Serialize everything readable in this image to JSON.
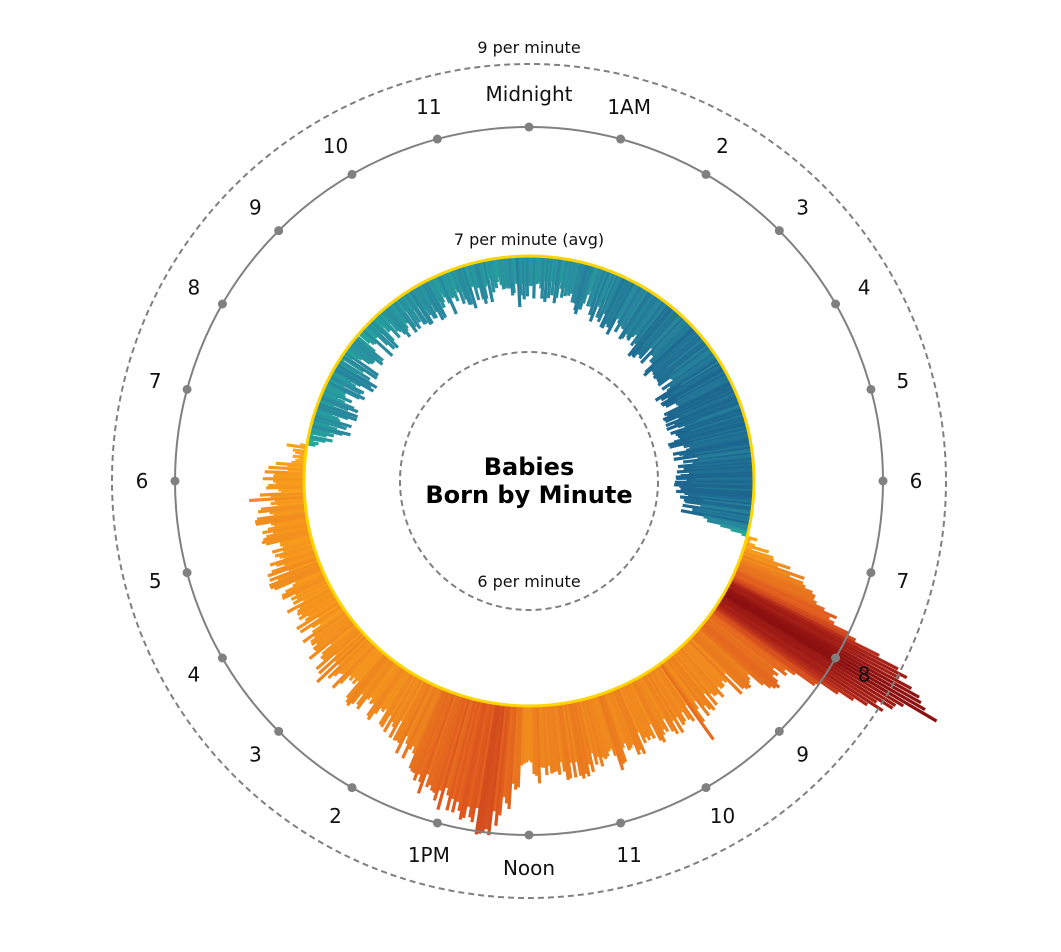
{
  "chart_data": {
    "type": "radial-bar",
    "title": "Babies\nBorn by Minute",
    "title_lines": [
      "Babies",
      "Born by Minute"
    ],
    "minutes_per_day": 1440,
    "baseline_per_minute": 7,
    "reference_rings": [
      {
        "value": 9,
        "label": "9 per minute"
      },
      {
        "value": 7,
        "label": "7 per minute (avg)"
      },
      {
        "value": 6,
        "label": "6 per minute"
      }
    ],
    "hour_labels": [
      "Midnight",
      "1AM",
      "2",
      "3",
      "4",
      "5",
      "6",
      "7",
      "8",
      "9",
      "10",
      "11",
      "Noon",
      "1PM",
      "2",
      "3",
      "4",
      "5",
      "6",
      "7",
      "8",
      "9",
      "10",
      "11"
    ],
    "hour_profile_per_minute": [
      {
        "hour": 0,
        "rate": 6.65
      },
      {
        "hour": 1,
        "rate": 6.6
      },
      {
        "hour": 2,
        "rate": 6.52
      },
      {
        "hour": 3,
        "rate": 6.42
      },
      {
        "hour": 4,
        "rate": 6.33
      },
      {
        "hour": 5,
        "rate": 6.28
      },
      {
        "hour": 6,
        "rate": 6.3
      },
      {
        "hour": 6.75,
        "rate": 6.4
      },
      {
        "hour": 7,
        "rate": 7.05
      },
      {
        "hour": 7.5,
        "rate": 7.9
      },
      {
        "hour": 8,
        "rate": 9.4
      },
      {
        "hour": 8.5,
        "rate": 8.0
      },
      {
        "hour": 9,
        "rate": 7.65
      },
      {
        "hour": 10,
        "rate": 7.6
      },
      {
        "hour": 11,
        "rate": 7.7
      },
      {
        "hour": 12,
        "rate": 7.7
      },
      {
        "hour": 12.5,
        "rate": 8.3
      },
      {
        "hour": 13,
        "rate": 8.1
      },
      {
        "hour": 14,
        "rate": 7.6
      },
      {
        "hour": 15,
        "rate": 7.5
      },
      {
        "hour": 16,
        "rate": 7.4
      },
      {
        "hour": 17,
        "rate": 7.45
      },
      {
        "hour": 18,
        "rate": 7.35
      },
      {
        "hour": 18.5,
        "rate": 7.1
      },
      {
        "hour": 19,
        "rate": 6.7
      },
      {
        "hour": 20,
        "rate": 6.7
      },
      {
        "hour": 21,
        "rate": 6.72
      },
      {
        "hour": 22,
        "rate": 6.7
      },
      {
        "hour": 23,
        "rate": 6.67
      },
      {
        "hour": 24,
        "rate": 6.65
      }
    ],
    "colors": {
      "below_avg": [
        "#1fb59a",
        "#2a8ea0",
        "#1c6690"
      ],
      "above_avg": [
        "#ffae1c",
        "#f08a1e",
        "#e05a1f",
        "#b3281a",
        "#8c1010"
      ],
      "avg_ring": "#ffd400",
      "outer_ring": "#808080",
      "ref_ring": "#808080"
    },
    "grid": false,
    "legend": "none"
  }
}
